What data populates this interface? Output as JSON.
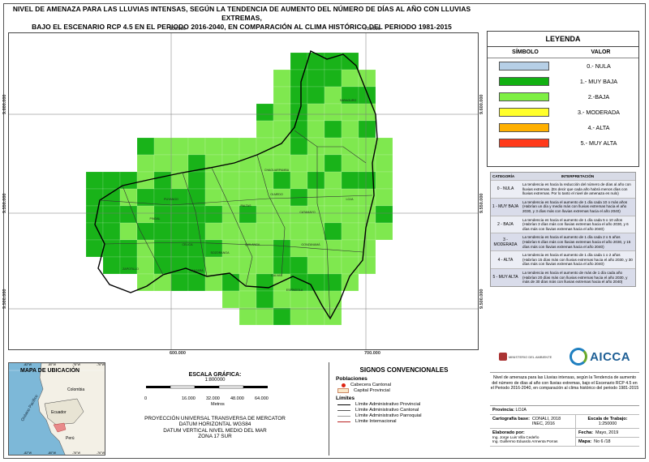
{
  "title_lines": [
    "NIVEL DE AMENAZA PARA LAS LLUVIAS INTENSAS, SEGÚN LA TENDENCIA DE AUMENTO DEL NÚMERO DE DÍAS AL AÑO CON LLUVIAS EXTREMAS,",
    "BAJO EL ESCENARIO RCP 4.5 EN EL PERIODO 2016-2040, EN COMPARACIÓN AL CLIMA HISTÓRICO DEL PERIODO 1981-2015"
  ],
  "map": {
    "coords_top": [
      "600.000",
      "700.000"
    ],
    "coords_bottom": [
      "600.000",
      "700.000"
    ],
    "coords_left": [
      "9.600.000",
      "9.550.000",
      "9.500.000"
    ],
    "coords_right": [
      "9.600.000",
      "9.550.000",
      "9.500.000"
    ],
    "colors": {
      "muy_baja": "#19b319",
      "baja": "#7fe84f"
    },
    "cantones": [
      "SARAGURO",
      "LOJA",
      "CATAMAYO",
      "GONZANAMÁ",
      "CALVAS",
      "PALTAS",
      "CELICA",
      "PINDAL",
      "PUYANGO",
      "ZAPOTILLO",
      "MACARÁ",
      "SOZORANGA",
      "QUILANGA",
      "ESPÍNDOLA",
      "OLMEDO",
      "CHAGUARPAMBA"
    ]
  },
  "legend": {
    "header": "LEYENDA",
    "col_symbol": "SÍMBOLO",
    "col_value": "VALOR",
    "items": [
      {
        "label": "0.- NULA",
        "color": "#b6cfe6"
      },
      {
        "label": "1.- MUY BAJA",
        "color": "#12b012"
      },
      {
        "label": "2.-BAJA",
        "color": "#7eef44"
      },
      {
        "label": "3.- MODERADA",
        "color": "#ffff2a"
      },
      {
        "label": "4.- ALTA",
        "color": "#ffb000"
      },
      {
        "label": "5.- MUY ALTA",
        "color": "#ff3a1a"
      }
    ]
  },
  "interp": {
    "col_cat": "CATEGORÍA",
    "col_int": "INTERPRETACIÓN",
    "rows": [
      {
        "cat": "0 - NULA",
        "text": "La tendencia es hacia la reducción del número de días al año con lluvias extremas. (Es decir que cada año habrá menos días con lluvias extremas. Por lo tanto el nivel de amenaza es nulo)"
      },
      {
        "cat": "1 - MUY BAJA",
        "text": "La tendencia es hacia el aumento de 1 día cada 10 o más años (Habrían un día y medio más con lluvias extremas hacia el año 2030, y 3 días más con lluvias extremas hacia el año 2040)"
      },
      {
        "cat": "2 - BAJA",
        "text": "La tendencia es hacia el aumento de 1 día cada 5 o 10 años (Habrían 3 días más con lluvias extremas hacia el año 2030, y 6 días más con lluvias extremas hacia el año 2040)"
      },
      {
        "cat": "3 - MODERADA",
        "text": "La tendencia es hacia el aumento de 1 día cada 2 o 5 años (Habrían 6 días más con lluvias extremas hacia el año 2030, y 15 días más con lluvias extremas hacia el año 2040)"
      },
      {
        "cat": "4 - ALTA",
        "text": "La tendencia es hacia el aumento de 1 día cada 1 o 2 años (Habrían 15 días más con lluvias extremas hacia el año 2030, y 30 días más con lluvias extremas hacia el año 2040)"
      },
      {
        "cat": "5 - MUY ALTA",
        "text": "La tendencia es hacia el aumento de más de 1 día cada año (Habrían 20 días más con lluvias extremas hacia el año 2030, y más de 30 días más con lluvias extremas hacia el año 2040)"
      }
    ]
  },
  "logos": {
    "aicca": "AICCA",
    "ministerio": "MINISTERIO DEL AMBIENTE"
  },
  "description": "Nivel de amenaza para las Lluvias intensas, según la Tendencia de aumento del número de días al año con lluvias extremas, bajo el Escenario RCP 4.5 en el Periodo 2016-2040, en comparación al clima histórico del periodo 1981-2015",
  "info": {
    "provincia_label": "Provincia:",
    "provincia_value": "LOJA",
    "cartografia_label": "Cartografía base:",
    "cartografia_value_1": "CONALI, 2018",
    "cartografia_value_2": "INEC, 2016",
    "escala_label": "Escala de Trabajo:",
    "escala_value": "1:250000",
    "elaborado_label": "Elaborado por:",
    "elaborado_1": "Ing. Jorge Luis Villa Cedeño",
    "elaborado_2": "Ing. Guillermo Eduardo Armenta Porras",
    "fecha_label": "Fecha:",
    "fecha_value": "Mayo, 2019",
    "mapa_label": "Mapa:",
    "mapa_value": "No 6 /18"
  },
  "location_map": {
    "title": "MAPA DE UBICACIÓN",
    "countries": [
      "Colombia",
      "Ecuador",
      "Perú"
    ],
    "ocean": "Océano Pacífico",
    "top_ticks": [
      "-82°W",
      "-80°W",
      "-78°W",
      "-76°W"
    ],
    "bottom_ticks": [
      "-82°W",
      "-80°W",
      "-78°W",
      "-76°W"
    ]
  },
  "scale": {
    "title": "ESCALA GRÁFICA:",
    "value": "1:800000",
    "ticks": [
      "0",
      "16.000",
      "32.000",
      "48.000",
      "64.000"
    ],
    "unit": "Metros"
  },
  "projection_lines": [
    "PROYECCIÓN UNIVERSAL TRANSVERSA DE MERCATOR",
    "DATUM HORIZONTAL WGS84",
    "DATUM VERTICAL NIVEL MEDIO DEL MAR",
    "ZONA 17 SUR"
  ],
  "signos": {
    "title": "SIGNOS CONVENCIONALES",
    "poblaciones": "Poblaciones",
    "cabecera": "Cabecera Cantonal",
    "capital": "Capital Provincial",
    "limites": "Límites",
    "lim_prov": "Límite Administrativo Provincial",
    "lim_cant": "Límite Administrativo Cantonal",
    "lim_parr": "Límite Administrativo Parroquial",
    "lim_int": "Límite Internacional"
  }
}
